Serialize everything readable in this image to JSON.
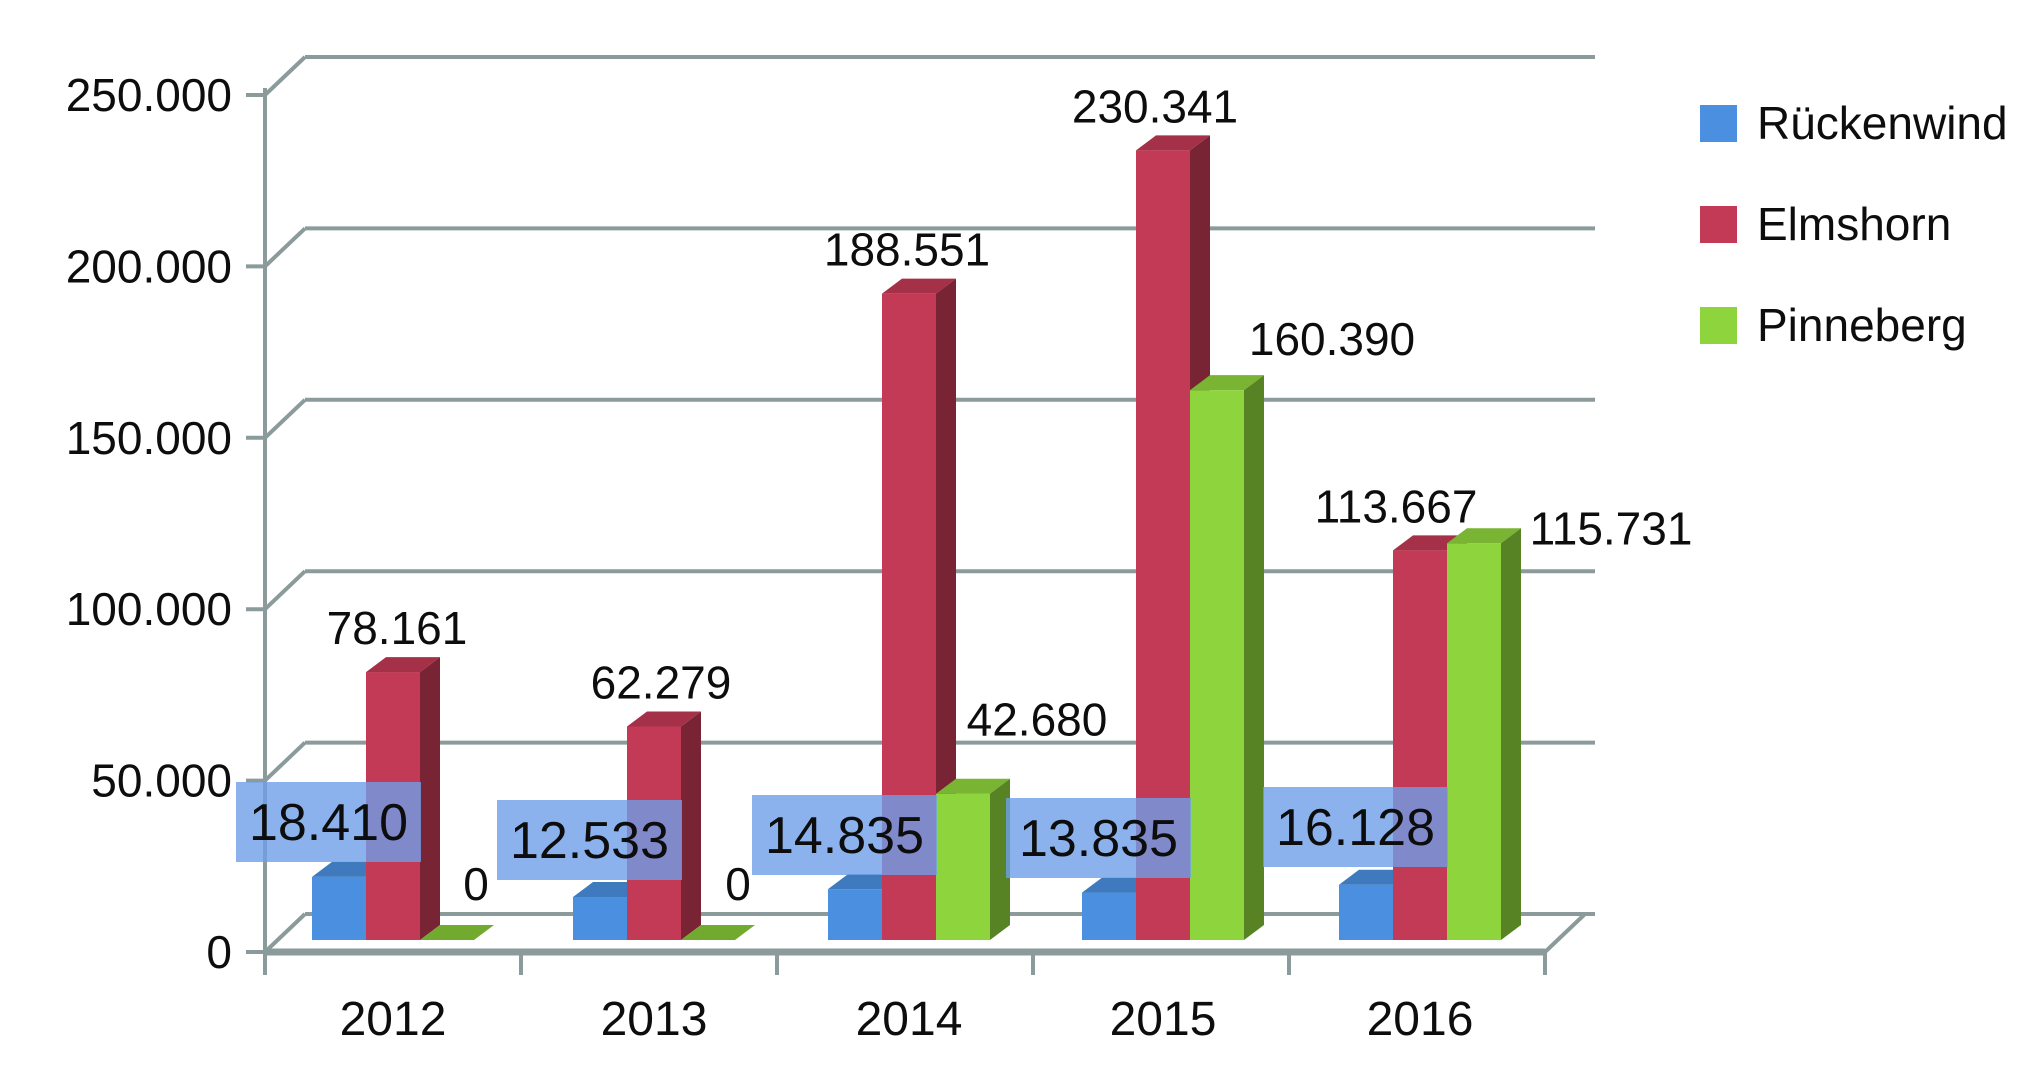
{
  "chart_data": {
    "type": "bar",
    "style": "3d-clustered-column",
    "title": "",
    "categories": [
      "2012",
      "2013",
      "2014",
      "2015",
      "2016"
    ],
    "series": [
      {
        "name": "Rückenwind",
        "color": "#4a8fe0",
        "values": [
          18410,
          12533,
          14835,
          13835,
          16128
        ],
        "labels": [
          "18.410",
          "12.533",
          "14.835",
          "13.835",
          "16.128"
        ],
        "label_style": "blue-box"
      },
      {
        "name": "Elmshorn",
        "color": "#c23a55",
        "values": [
          78161,
          62279,
          188551,
          230341,
          113667
        ],
        "labels": [
          "78.161",
          "62.279",
          "188.551",
          "230.341",
          "113.667"
        ],
        "label_style": "plain"
      },
      {
        "name": "Pinneberg",
        "color": "#8ed43c",
        "values": [
          0,
          0,
          42680,
          160390,
          115731
        ],
        "labels": [
          "0",
          "0",
          "42.680",
          "160.390",
          "115.731"
        ],
        "label_style": "plain"
      }
    ],
    "y_axis": {
      "min": 0,
      "max": 250000,
      "ticks": [
        0,
        50000,
        100000,
        150000,
        200000,
        250000
      ],
      "tick_labels": [
        "0",
        "50.000",
        "100.000",
        "150.000",
        "200.000",
        "250.000"
      ]
    },
    "legend": {
      "position": "right"
    },
    "grid": true
  },
  "colors": {
    "grid": "#8b9a9a",
    "text": "#0d0d0d",
    "label_box": "#6f9fe8",
    "label_box_opacity": 0.8,
    "background": "#ffffff"
  }
}
